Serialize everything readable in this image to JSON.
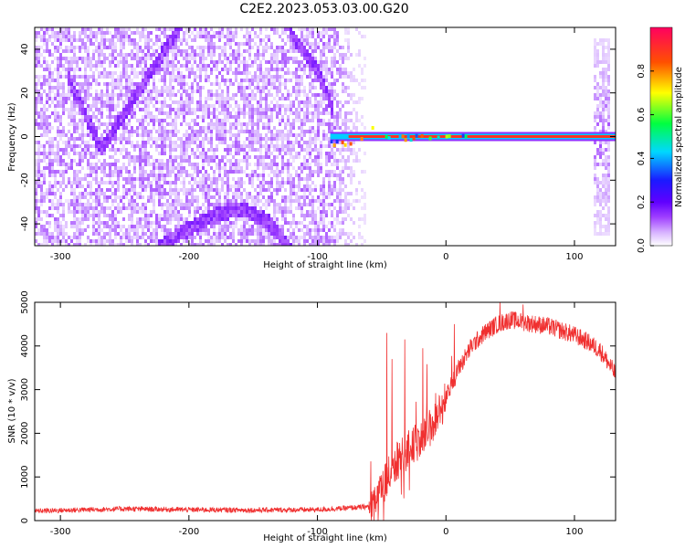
{
  "title": "C2E2.2023.053.03.00.G20",
  "colors": {
    "snr_line": "#f03030",
    "colorbar_stops": [
      "#ffffff",
      "#d8b4ff",
      "#a040ff",
      "#6000ff",
      "#1a1aff",
      "#00d8ff",
      "#00ff40",
      "#ffff00",
      "#ff5000",
      "#ff0060"
    ]
  },
  "chart_data": [
    {
      "type": "heatmap",
      "name": "spectrogram",
      "xlabel": "Height of straight line (km)",
      "ylabel": "Frequency (Hz)",
      "xlim": [
        -320,
        132
      ],
      "ylim": [
        -50,
        50
      ],
      "xticks": [
        -300,
        -200,
        -100,
        0,
        100
      ],
      "yticks": [
        -40,
        -20,
        0,
        20,
        40
      ],
      "colorbar": {
        "label": "Normalized spectral amplitude",
        "range": [
          0,
          1
        ],
        "ticks": [
          "0.0",
          "0.2",
          "0.4",
          "0.6",
          "0.8"
        ]
      },
      "features": {
        "noise_region_km": [
          -320,
          -62
        ],
        "carrier_line": {
          "x_range_km": [
            -90,
            132
          ],
          "freq_hz": 0
        },
        "edge_burst_km": [
          116,
          128
        ],
        "traces": [
          {
            "x": [
              -295,
              -268,
              -240,
              -205
            ],
            "y": [
              28,
              -6,
              20,
              52
            ]
          },
          {
            "x": [
              -122,
              -100,
              -88
            ],
            "y": [
              48,
              30,
              12
            ]
          },
          {
            "x": [
              -225,
              -205,
              -180,
              -160,
              -140,
              -120
            ],
            "y": [
              -52,
              -44,
              -36,
              -33,
              -38,
              -52
            ]
          }
        ]
      }
    },
    {
      "type": "line",
      "name": "snr",
      "xlabel": "Height of straight line (km)",
      "ylabel": "SNR (10 * v/v)",
      "xlim": [
        -320,
        132
      ],
      "ylim": [
        0,
        5000
      ],
      "xticks": [
        -300,
        -200,
        -100,
        0,
        100
      ],
      "yticks": [
        0,
        1000,
        2000,
        3000,
        4000,
        5000
      ],
      "envelope": {
        "x": [
          -320,
          -250,
          -200,
          -150,
          -100,
          -80,
          -60,
          -50,
          -40,
          -30,
          -20,
          -10,
          0,
          10,
          20,
          30,
          40,
          50,
          60,
          80,
          100,
          110,
          120,
          132
        ],
        "y": [
          220,
          270,
          250,
          240,
          250,
          280,
          320,
          700,
          1300,
          1600,
          1900,
          2200,
          2800,
          3500,
          4000,
          4300,
          4500,
          4600,
          4550,
          4450,
          4250,
          4100,
          3900,
          3350
        ]
      },
      "spikes": [
        {
          "x": -46,
          "y": 4300
        },
        {
          "x": -42,
          "y": 3700
        },
        {
          "x": -32,
          "y": 4150
        },
        {
          "x": -18,
          "y": 3950
        },
        {
          "x": 42,
          "y": 5000
        },
        {
          "x": 60,
          "y": 4950
        }
      ]
    }
  ]
}
